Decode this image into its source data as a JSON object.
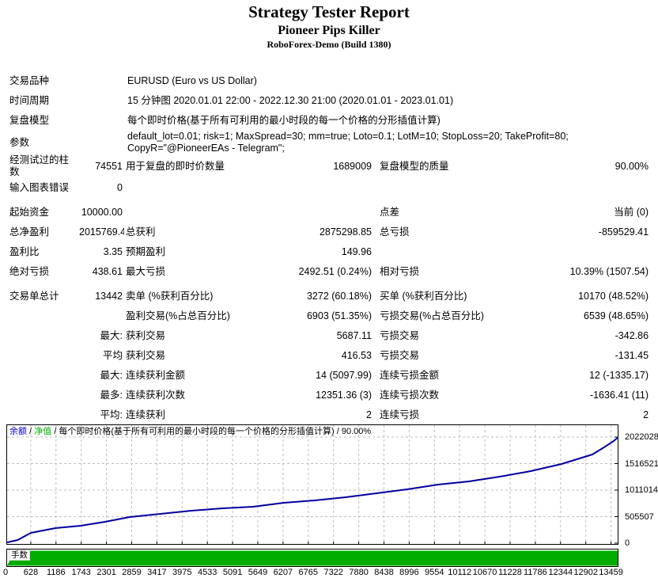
{
  "header": {
    "title": "Strategy Tester Report",
    "subtitle": "Pioneer Pips Killer",
    "server": "RoboForex-Demo (Build 1380)"
  },
  "table": {
    "rows": [
      {
        "type": "info",
        "label": "交易品种",
        "value": "EURUSD (Euro vs US Dollar)"
      },
      {
        "type": "info",
        "label": "时间周期",
        "value": "15 分钟图 2020.01.01 22:00 - 2022.12.30 21:00 (2020.01.01 - 2023.01.01)"
      },
      {
        "type": "info",
        "label": "复盘模型",
        "value": "每个即时价格(基于所有可利用的最小时段的每一个价格的分形插值计算)"
      },
      {
        "type": "info",
        "label": "参数",
        "value": "default_lot=0.01; risk=1; MaxSpread=30; mm=true; Loto=0.1; LotM=10; StopLoss=20; TakeProfit=80;\nCopyR=\"@PioneerEAs - Telegram\";"
      },
      {
        "type": "stats",
        "cells": [
          "经测试过的柱数",
          "74551",
          "用于复盘的即时价数量",
          "1689009",
          "复盘模型的质量",
          "90.00%"
        ]
      },
      {
        "type": "stats",
        "cells": [
          "输入图表错误",
          "0",
          "",
          "",
          "",
          ""
        ]
      },
      {
        "type": "spacer"
      },
      {
        "type": "stats",
        "cells": [
          "起始资金",
          "10000.00",
          "",
          "",
          "点差",
          "当前 (0)"
        ]
      },
      {
        "type": "stats",
        "cells": [
          "总净盈利",
          "2015769.44",
          "总获利",
          "2875298.85",
          "总亏损",
          "-859529.41"
        ]
      },
      {
        "type": "stats",
        "cells": [
          "盈利比",
          "3.35",
          "预期盈利",
          "149.96",
          "",
          ""
        ]
      },
      {
        "type": "stats",
        "cells": [
          "绝对亏损",
          "438.61",
          "最大亏损",
          "2492.51 (0.24%)",
          "相对亏损",
          "10.39% (1507.54)"
        ]
      },
      {
        "type": "spacer"
      },
      {
        "type": "stats",
        "cells": [
          "交易单总计",
          "13442",
          "卖单 (%获利百分比)",
          "3272 (60.18%)",
          "买单 (%获利百分比)",
          "10170 (48.52%)"
        ]
      },
      {
        "type": "stats",
        "cells": [
          "",
          "",
          "盈利交易(%占总百分比)",
          "6903 (51.35%)",
          "亏损交易(%占总百分比)",
          "6539 (48.65%)"
        ]
      },
      {
        "type": "stats",
        "cells": [
          "",
          "最大:",
          "获利交易",
          "5687.11",
          "亏损交易",
          "-342.86"
        ]
      },
      {
        "type": "stats",
        "cells": [
          "",
          "平均",
          "获利交易",
          "416.53",
          "亏损交易",
          "-131.45"
        ]
      },
      {
        "type": "stats",
        "cells": [
          "",
          "最大:",
          "连续获利金额",
          "14 (5097.99)",
          "连续亏损金额",
          "12 (-1335.17)"
        ]
      },
      {
        "type": "stats",
        "cells": [
          "",
          "最多:",
          "连续获利次数",
          "12351.36 (3)",
          "连续亏损次数",
          "-1636.41 (11)"
        ]
      },
      {
        "type": "stats",
        "cells": [
          "",
          "平均:",
          "连续获利",
          "2",
          "连续亏损",
          "2"
        ]
      }
    ]
  },
  "chart_data": [
    {
      "type": "line",
      "name": "balance-curve",
      "legend": [
        {
          "text": "余额",
          "color": "#0000d4"
        },
        {
          "text": "净值",
          "color": "#00b000"
        },
        {
          "text": "每个即时价格(基于所有可利用的最小时段的每一个价格的分形插值计算)",
          "color": "#000000"
        },
        {
          "text": "90.00%",
          "color": "#000000"
        }
      ],
      "line_color": "#0000a0",
      "grid_color": "#bdbdbd",
      "xlim": [
        0,
        13459
      ],
      "ylim": [
        0,
        2263000
      ],
      "x_ticks": [
        0,
        628,
        1186,
        1743,
        2301,
        2859,
        3417,
        3975,
        4533,
        5091,
        5649,
        6207,
        6765,
        7322,
        7880,
        8438,
        8996,
        9554,
        10112,
        10670,
        11228,
        11786,
        12344,
        12902,
        13459
      ],
      "y_ticks": [
        0,
        505507,
        1011014,
        1516521,
        2022028
      ],
      "points": [
        [
          0,
          10000
        ],
        [
          250,
          60000
        ],
        [
          539,
          196000
        ],
        [
          1078,
          287000
        ],
        [
          1634,
          332000
        ],
        [
          2173,
          407000
        ],
        [
          2712,
          498000
        ],
        [
          3391,
          558000
        ],
        [
          4069,
          619000
        ],
        [
          4747,
          664000
        ],
        [
          5425,
          694000
        ],
        [
          6104,
          770000
        ],
        [
          6782,
          815000
        ],
        [
          7460,
          875000
        ],
        [
          8138,
          951000
        ],
        [
          8817,
          1026000
        ],
        [
          9495,
          1117000
        ],
        [
          10173,
          1177000
        ],
        [
          10851,
          1268000
        ],
        [
          11530,
          1373000
        ],
        [
          12208,
          1509000
        ],
        [
          12886,
          1690000
        ],
        [
          13150,
          1830000
        ],
        [
          13355,
          1947000
        ],
        [
          13459,
          2022028
        ]
      ]
    },
    {
      "type": "area",
      "name": "lots-histogram",
      "label": "手数",
      "fill_color": "#00ad00",
      "ymax_fraction": 1,
      "profile": [
        [
          0,
          0.02
        ],
        [
          90,
          0.5
        ],
        [
          175,
          0.72
        ],
        [
          260,
          0.85
        ],
        [
          350,
          1
        ],
        [
          13459,
          1
        ]
      ]
    }
  ]
}
